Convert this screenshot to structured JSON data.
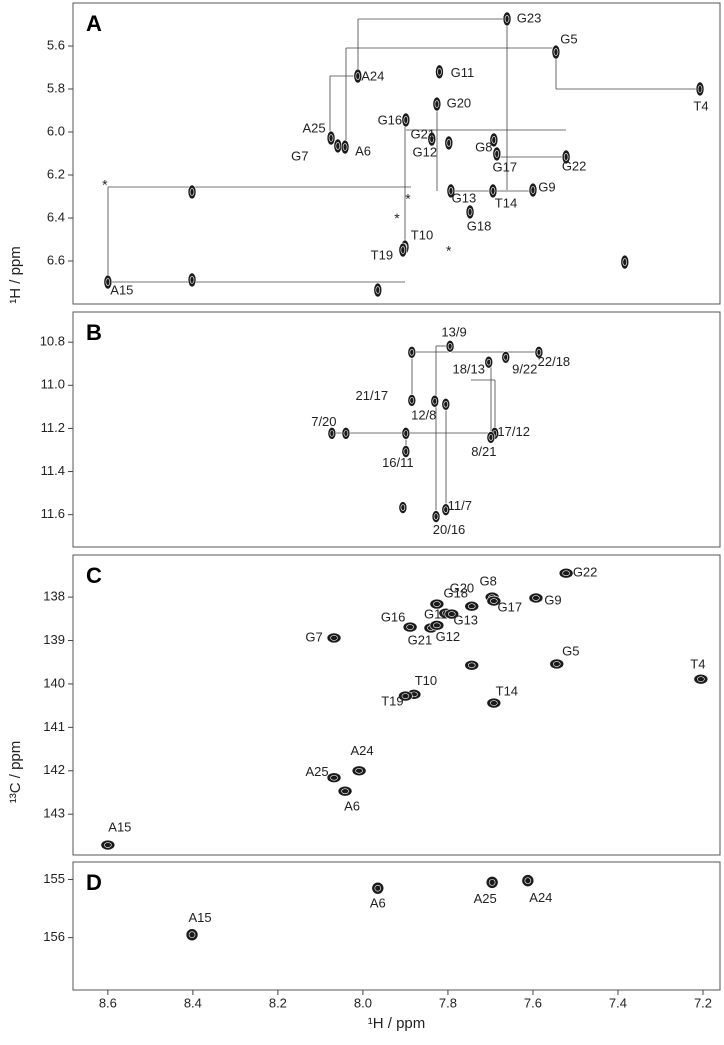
{
  "chart_data": [
    {
      "type": "scatter",
      "title": "A",
      "ylabel": "¹H / ppm",
      "color": "#1a1a1a",
      "xlim": [
        8.682,
        7.16
      ],
      "ylim": [
        5.4,
        6.8
      ],
      "yticks": [
        5.6,
        5.8,
        {
          "value": 6,
          "label": "6.0"
        },
        6.2,
        6.4,
        6.6
      ],
      "x": [
        7.661,
        7.546,
        8.012,
        7.82,
        7.207,
        7.826,
        8.075,
        8.059,
        8.042,
        7.899,
        7.838,
        7.798,
        7.692,
        7.685,
        7.522,
        7.6,
        7.793,
        7.694,
        7.748,
        7.901,
        7.906,
        8.6,
        8.402,
        8.402,
        7.965,
        7.384
      ],
      "values": [
        5.474,
        5.628,
        5.74,
        5.72,
        5.8,
        5.87,
        6.028,
        6.065,
        6.07,
        5.944,
        6.033,
        6.051,
        6.037,
        6.102,
        6.116,
        6.27,
        6.274,
        6.274,
        6.372,
        6.535,
        6.549,
        6.698,
        6.279,
        6.688,
        6.735,
        6.605
      ],
      "labels": [
        "G23",
        "G5",
        "A24",
        "G11",
        "T4",
        "G20",
        "A25",
        "G7",
        "A6",
        "G16",
        "G21",
        "G12",
        "G8",
        "G17",
        "G22",
        "G9",
        "G13",
        "T14",
        "G18",
        "T10",
        "T19",
        "A15",
        null,
        null,
        null,
        null
      ],
      "annotations": [
        {
          "text": "*",
          "x": 8.607,
          "y": 6.251
        },
        {
          "text": "*",
          "x": 7.894,
          "y": 6.316
        },
        {
          "text": "*",
          "x": 7.92,
          "y": 6.405
        },
        {
          "text": "*",
          "x": 7.798,
          "y": 6.558
        }
      ]
    },
    {
      "type": "scatter",
      "title": "B",
      "color": "#1a1a1a",
      "xlim": [
        8.682,
        7.16
      ],
      "ylim": [
        10.66,
        11.75
      ],
      "yticks": [
        10.8,
        {
          "value": 11,
          "label": "11.0"
        },
        11.2,
        11.4,
        11.6
      ],
      "x": [
        7.795,
        7.586,
        7.664,
        7.704,
        7.885,
        7.831,
        8.073,
        7.899,
        7.69,
        7.699,
        7.805,
        7.828,
        7.899,
        8.04,
        7.885,
        7.805,
        7.906
      ],
      "values": [
        10.819,
        10.847,
        10.87,
        10.893,
        11.07,
        11.074,
        11.223,
        11.307,
        11.223,
        11.242,
        11.577,
        11.609,
        11.223,
        11.223,
        10.847,
        11.088,
        11.567
      ],
      "labels": [
        "13/9",
        "22/18",
        "9/22",
        "18/13",
        "21/17",
        "12/8",
        "7/20",
        "16/11",
        "17/12",
        "8/21",
        "11/7",
        "20/16",
        null,
        null,
        null,
        null,
        null
      ]
    },
    {
      "type": "scatter",
      "title": "C",
      "ylabel": "¹³C / ppm",
      "color": "#1a1a1a",
      "xlim": [
        8.682,
        7.16
      ],
      "ylim": [
        137.03,
        143.94
      ],
      "yticks": [
        138,
        139,
        140,
        141,
        142,
        143
      ],
      "x": [
        7.522,
        7.696,
        7.744,
        7.593,
        7.826,
        7.692,
        7.805,
        7.791,
        7.889,
        7.84,
        7.826,
        8.068,
        7.544,
        7.205,
        7.88,
        7.9,
        7.692,
        8.009,
        8.068,
        8.042,
        8.6,
        7.744
      ],
      "values": [
        137.45,
        138.0,
        138.21,
        138.02,
        138.16,
        138.09,
        138.37,
        138.39,
        138.69,
        138.71,
        138.65,
        138.94,
        139.54,
        139.89,
        140.24,
        140.28,
        140.44,
        142.0,
        142.16,
        142.47,
        143.71,
        139.57
      ],
      "labels": [
        "G22",
        "G8",
        "G18",
        "G9",
        "G20",
        "G17",
        "G11",
        "G13",
        "G16",
        "G21",
        "G12",
        "G7",
        "G5",
        "T4",
        "T10",
        "T19",
        "T14",
        "A24",
        "A25",
        "A6",
        "A15",
        null
      ]
    },
    {
      "type": "scatter",
      "title": "D",
      "xlabel": "¹H / ppm",
      "color": "#1a1a1a",
      "xlim": [
        8.682,
        7.16
      ],
      "ylim": [
        154.7,
        156.9
      ],
      "yticks": [
        155,
        156
      ],
      "xticks": [
        8.6,
        8.4,
        8.2,
        {
          "value": 8,
          "label": "8.0"
        },
        7.8,
        7.6,
        7.4,
        7.2
      ],
      "x": [
        8.402,
        7.965,
        7.696,
        7.612
      ],
      "values": [
        155.95,
        155.15,
        155.05,
        155.02
      ],
      "labels": [
        "A15",
        "A6",
        "A25",
        "A24"
      ]
    }
  ]
}
